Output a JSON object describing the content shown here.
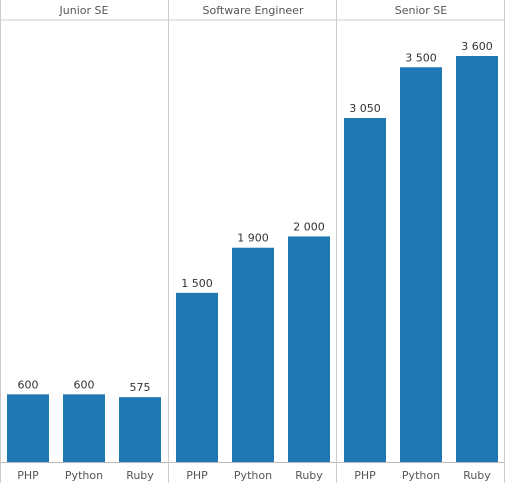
{
  "chart_data": {
    "type": "bar",
    "bar_color": "#1f77b4",
    "panels": [
      {
        "title": "Junior SE",
        "categories": [
          "PHP",
          "Python",
          "Ruby"
        ],
        "values": [
          600,
          600,
          575
        ],
        "value_labels": [
          "600",
          "600",
          "575"
        ]
      },
      {
        "title": "Software Engineer",
        "categories": [
          "PHP",
          "Python",
          "Ruby"
        ],
        "values": [
          1500,
          1900,
          2000
        ],
        "value_labels": [
          "1 500",
          "1 900",
          "2 000"
        ]
      },
      {
        "title": "Senior SE",
        "categories": [
          "PHP",
          "Python",
          "Ruby"
        ],
        "values": [
          3050,
          3500,
          3600
        ],
        "value_labels": [
          "3 050",
          "3 500",
          "3 600"
        ]
      }
    ],
    "ylim": [
      0,
      3600
    ],
    "grid": false,
    "legend": "none"
  }
}
